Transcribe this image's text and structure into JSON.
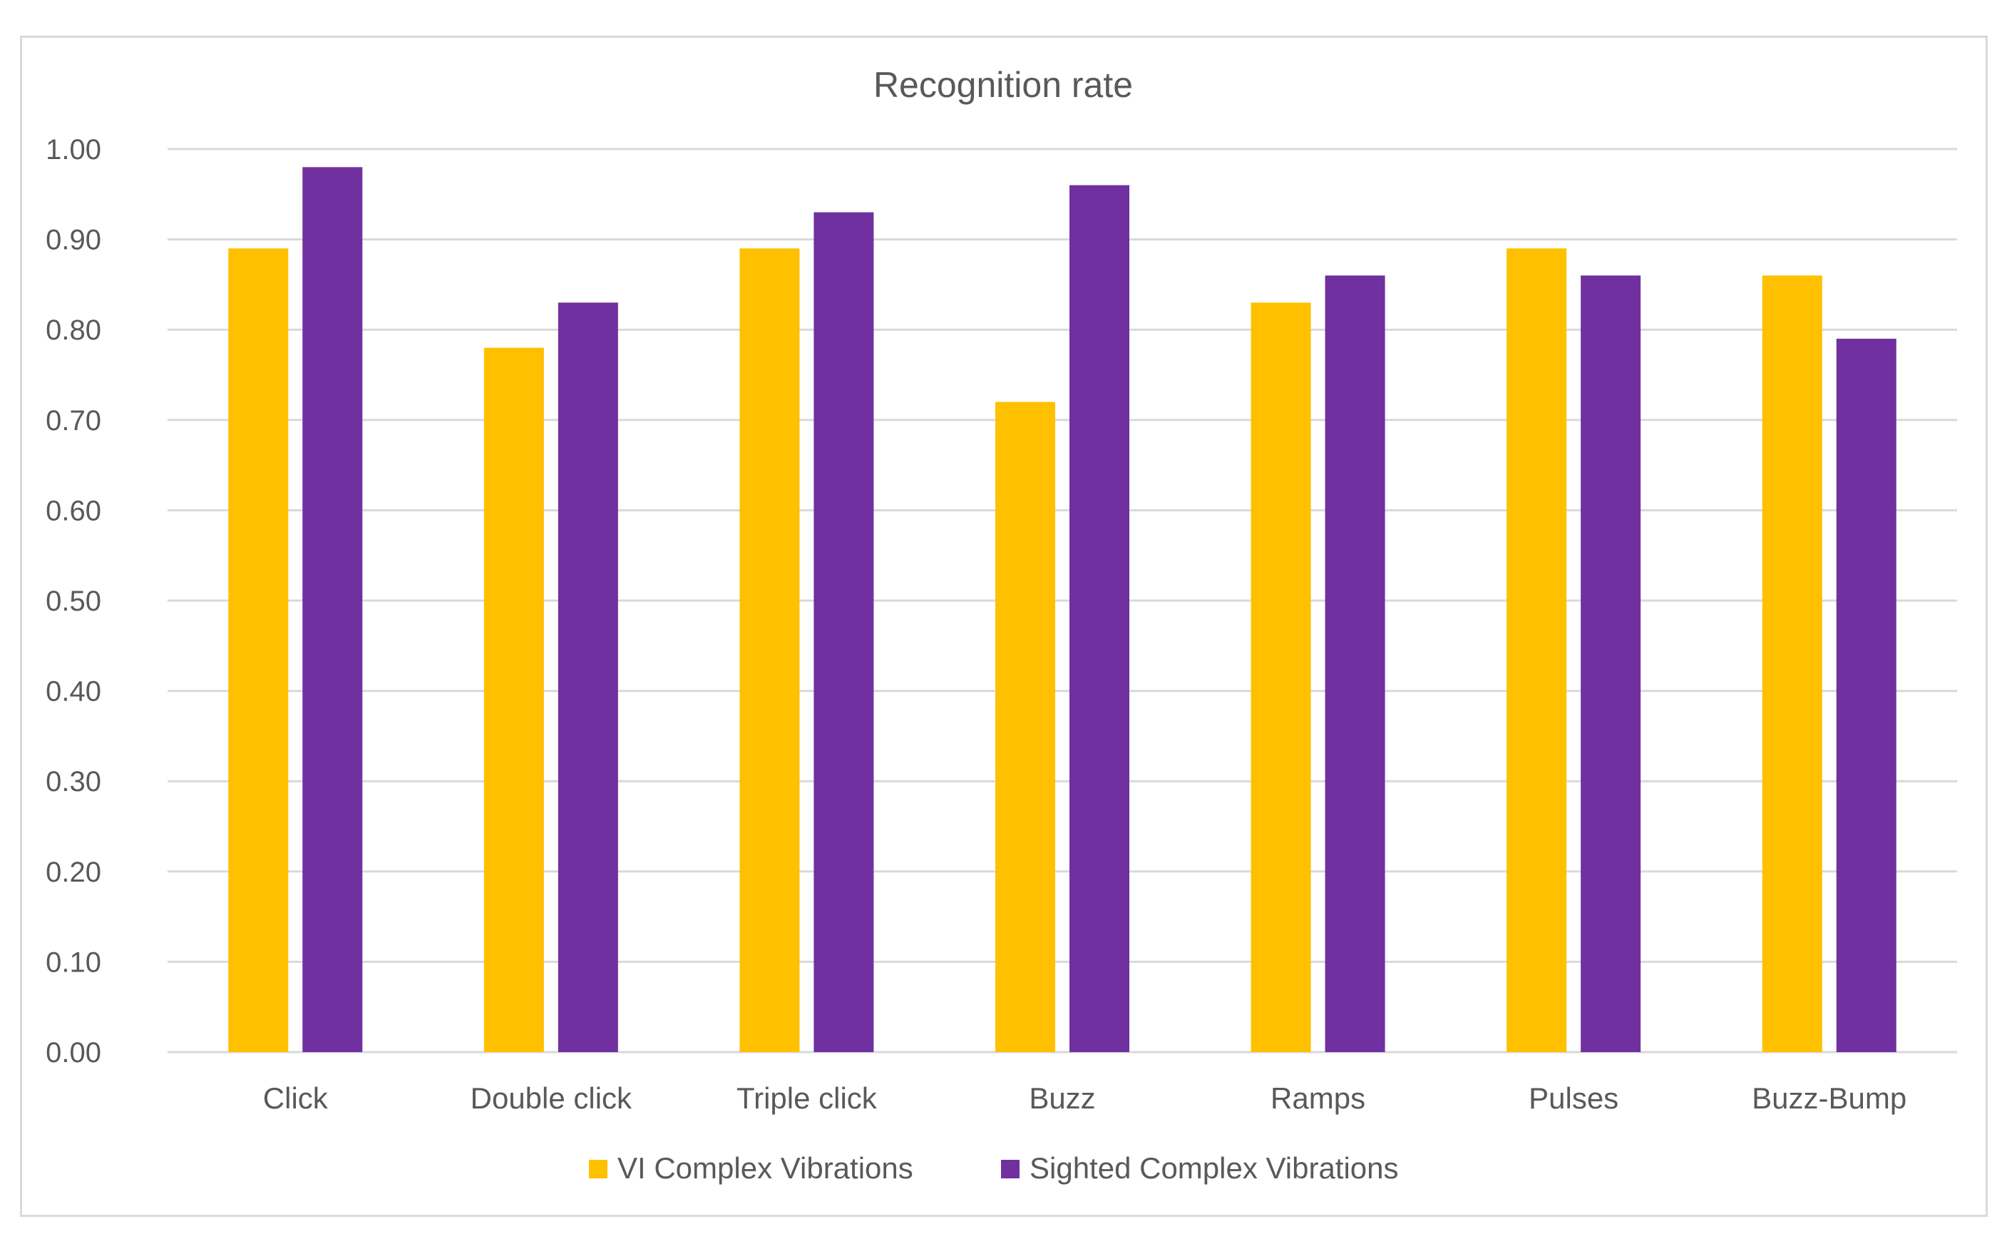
{
  "chart_data": {
    "type": "bar",
    "title": "Recognition rate",
    "categories": [
      "Click",
      "Double click",
      "Triple click",
      "Buzz",
      "Ramps",
      "Pulses",
      "Buzz-Bump"
    ],
    "series": [
      {
        "name": "VI Complex Vibrations",
        "color": "#FFC000",
        "values": [
          0.89,
          0.78,
          0.89,
          0.72,
          0.83,
          0.89,
          0.86
        ]
      },
      {
        "name": "Sighted Complex Vibrations",
        "color": "#7030A0",
        "values": [
          0.98,
          0.83,
          0.93,
          0.96,
          0.86,
          0.86,
          0.79
        ]
      }
    ],
    "xlabel": "",
    "ylabel": "",
    "ylim": [
      0,
      1.0
    ],
    "yticks": [
      "0.00",
      "0.10",
      "0.20",
      "0.30",
      "0.40",
      "0.50",
      "0.60",
      "0.70",
      "0.80",
      "0.90",
      "1.00"
    ],
    "grid": true,
    "legend_position": "bottom"
  }
}
